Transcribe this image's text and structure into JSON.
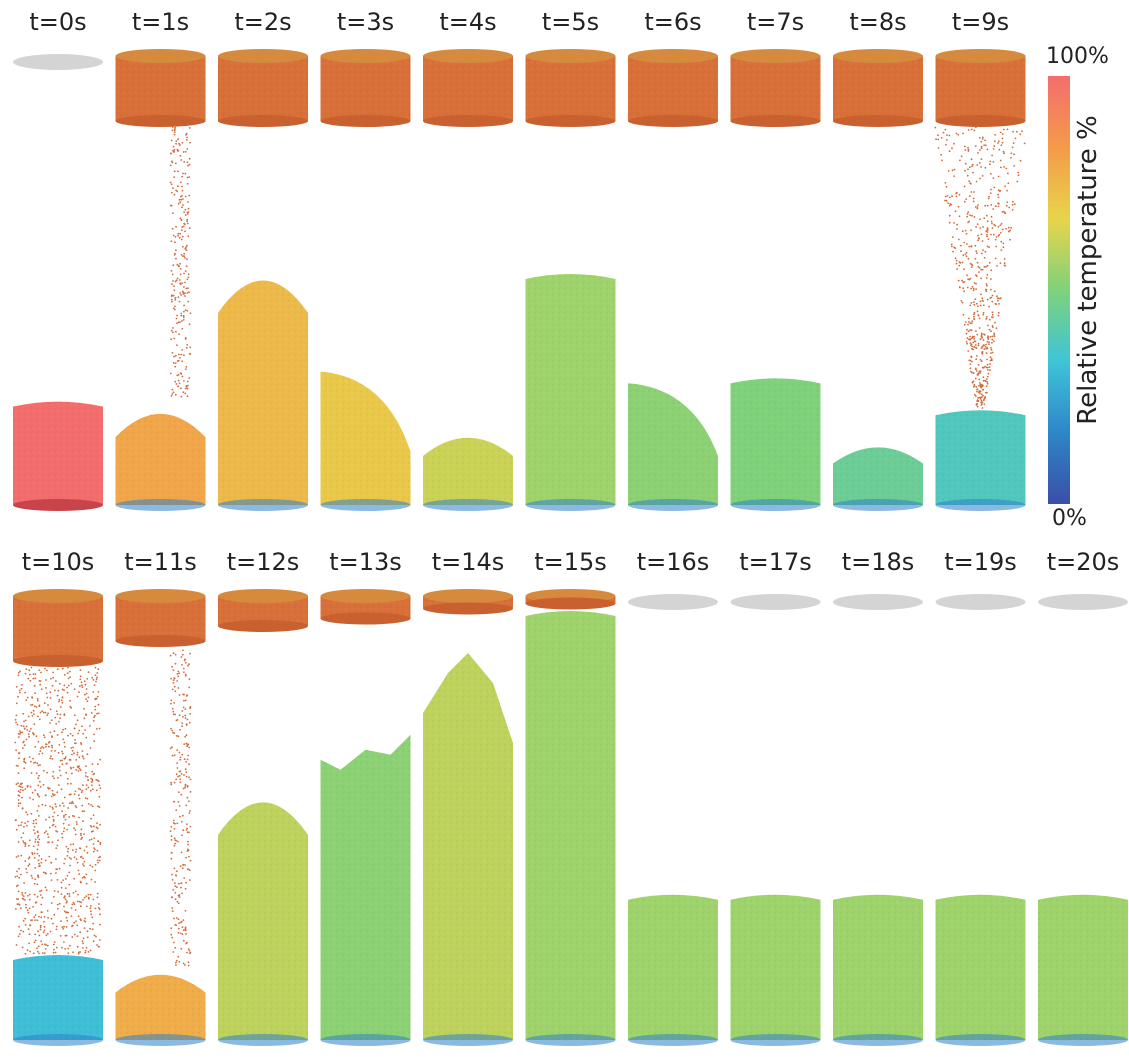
{
  "frames": [
    {
      "label": "t=0s",
      "upper": "empty",
      "upper_fill": 0.0,
      "stream": "none",
      "lower_fill": 0.36,
      "pile_temp": 1.0,
      "pile_shape": "flat"
    },
    {
      "label": "t=1s",
      "upper": "full",
      "upper_fill": 0.26,
      "stream": "thin",
      "lower_fill": 0.36,
      "pile_temp": 0.8,
      "pile_shape": "mound"
    },
    {
      "label": "t=2s",
      "upper": "full",
      "upper_fill": 0.26,
      "stream": "none",
      "lower_fill": 0.8,
      "pile_temp": 0.74,
      "pile_shape": "dome"
    },
    {
      "label": "t=3s",
      "upper": "full",
      "upper_fill": 0.26,
      "stream": "none",
      "lower_fill": 0.46,
      "pile_temp": 0.7,
      "pile_shape": "slope"
    },
    {
      "label": "t=4s",
      "upper": "full",
      "upper_fill": 0.26,
      "stream": "none",
      "lower_fill": 0.26,
      "pile_temp": 0.62,
      "pile_shape": "mound"
    },
    {
      "label": "t=5s",
      "upper": "full",
      "upper_fill": 0.26,
      "stream": "none",
      "lower_fill": 0.8,
      "pile_temp": 0.55,
      "pile_shape": "flat"
    },
    {
      "label": "t=6s",
      "upper": "full",
      "upper_fill": 0.26,
      "stream": "none",
      "lower_fill": 0.42,
      "pile_temp": 0.52,
      "pile_shape": "slope"
    },
    {
      "label": "t=7s",
      "upper": "full",
      "upper_fill": 0.26,
      "stream": "none",
      "lower_fill": 0.44,
      "pile_temp": 0.5,
      "pile_shape": "flat"
    },
    {
      "label": "t=8s",
      "upper": "full",
      "upper_fill": 0.26,
      "stream": "none",
      "lower_fill": 0.22,
      "pile_temp": 0.45,
      "pile_shape": "mound"
    },
    {
      "label": "t=9s",
      "upper": "full",
      "upper_fill": 0.26,
      "stream": "funnel",
      "lower_fill": 0.33,
      "pile_temp": 0.38,
      "pile_shape": "flat"
    },
    {
      "label": "t=10s",
      "upper": "full",
      "upper_fill": 0.26,
      "stream": "wide",
      "lower_fill": 0.2,
      "pile_temp": 0.32,
      "pile_shape": "flat"
    },
    {
      "label": "t=11s",
      "upper": "full",
      "upper_fill": 0.18,
      "stream": "thin",
      "lower_fill": 0.17,
      "pile_temp": 0.78,
      "pile_shape": "mound"
    },
    {
      "label": "t=12s",
      "upper": "full",
      "upper_fill": 0.12,
      "stream": "none",
      "lower_fill": 0.57,
      "pile_temp": 0.6,
      "pile_shape": "dome"
    },
    {
      "label": "t=13s",
      "upper": "full",
      "upper_fill": 0.09,
      "stream": "none",
      "lower_fill": 0.71,
      "pile_temp": 0.52,
      "pile_shape": "ragged"
    },
    {
      "label": "t=14s",
      "upper": "full",
      "upper_fill": 0.05,
      "stream": "none",
      "lower_fill": 0.9,
      "pile_temp": 0.6,
      "pile_shape": "spike"
    },
    {
      "label": "t=15s",
      "upper": "full",
      "upper_fill": 0.03,
      "stream": "none",
      "lower_fill": 1.0,
      "pile_temp": 0.55,
      "pile_shape": "flat"
    },
    {
      "label": "t=16s",
      "upper": "empty",
      "upper_fill": 0.0,
      "stream": "none",
      "lower_fill": 0.34,
      "pile_temp": 0.55,
      "pile_shape": "flat"
    },
    {
      "label": "t=17s",
      "upper": "empty",
      "upper_fill": 0.0,
      "stream": "none",
      "lower_fill": 0.34,
      "pile_temp": 0.55,
      "pile_shape": "flat"
    },
    {
      "label": "t=18s",
      "upper": "empty",
      "upper_fill": 0.0,
      "stream": "none",
      "lower_fill": 0.34,
      "pile_temp": 0.55,
      "pile_shape": "flat"
    },
    {
      "label": "t=19s",
      "upper": "empty",
      "upper_fill": 0.0,
      "stream": "none",
      "lower_fill": 0.34,
      "pile_temp": 0.55,
      "pile_shape": "flat"
    },
    {
      "label": "t=20s",
      "upper": "empty",
      "upper_fill": 0.0,
      "stream": "none",
      "lower_fill": 0.34,
      "pile_temp": 0.55,
      "pile_shape": "flat"
    }
  ],
  "colorbar": {
    "title": "Relative temperature %",
    "max_label": "100%",
    "min_label": "0%",
    "colors": [
      "#f46d6d",
      "#f49a4a",
      "#e8d44a",
      "#7fd27a",
      "#3fc4d8",
      "#2e86c9",
      "#3a4ea8"
    ]
  },
  "colors": {
    "empty_plate": "#d4d4d4",
    "hot_upper": "#d9703a",
    "cold_base": "#2e7fc9"
  }
}
